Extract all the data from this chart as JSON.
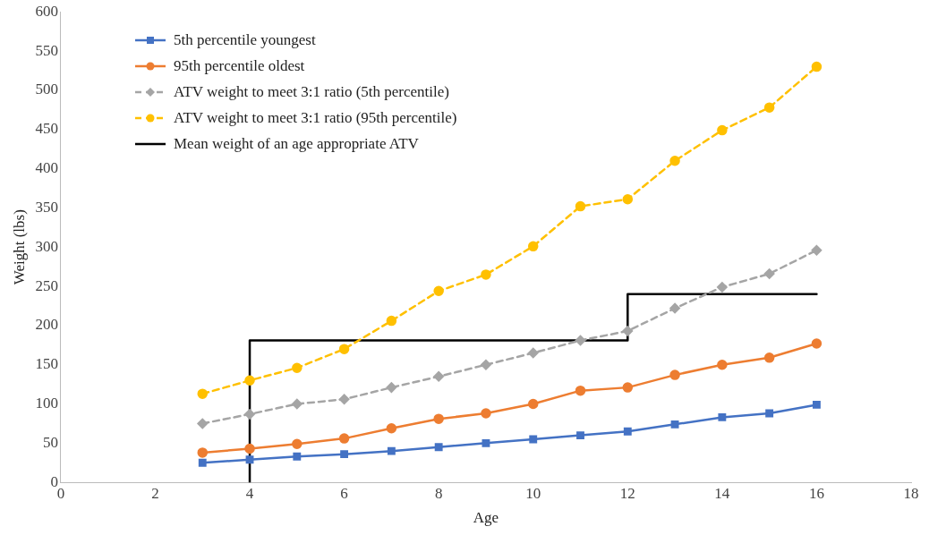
{
  "chart_data": {
    "type": "line",
    "xlabel": "Age",
    "ylabel": "Weight (lbs)",
    "x": [
      3,
      4,
      5,
      6,
      7,
      8,
      9,
      10,
      11,
      12,
      13,
      14,
      15,
      16
    ],
    "xlim": [
      0,
      18
    ],
    "xticks": [
      0,
      2,
      4,
      6,
      8,
      10,
      12,
      14,
      16,
      18
    ],
    "ylim": [
      0,
      600
    ],
    "yticks": [
      0,
      50,
      100,
      150,
      200,
      250,
      300,
      350,
      400,
      450,
      500,
      550,
      600
    ],
    "grid": false,
    "legend": "top left",
    "series": [
      {
        "name": "5th percentile youngest",
        "color": "#4472c4",
        "marker": "square",
        "line_style": "solid",
        "values": [
          25,
          29,
          33,
          36,
          40,
          45,
          50,
          55,
          60,
          65,
          74,
          83,
          88,
          99
        ]
      },
      {
        "name": "95th percentile oldest",
        "color": "#ed7d31",
        "marker": "circle",
        "line_style": "solid",
        "values": [
          38,
          43,
          49,
          56,
          69,
          81,
          88,
          100,
          117,
          121,
          137,
          150,
          159,
          177
        ]
      },
      {
        "name": "ATV weight to meet 3:1 ratio (5th percentile)",
        "color": "#a5a5a5",
        "marker": "diamond",
        "line_style": "dashed",
        "values": [
          75,
          87,
          100,
          106,
          121,
          135,
          150,
          165,
          181,
          193,
          222,
          249,
          266,
          296
        ]
      },
      {
        "name": "ATV weight to meet 3:1 ratio (95th percentile)",
        "color": "#ffc000",
        "marker": "circle",
        "line_style": "dashed",
        "values": [
          113,
          130,
          146,
          170,
          206,
          244,
          265,
          301,
          352,
          361,
          410,
          449,
          478,
          530
        ]
      },
      {
        "name": "Mean weight of an age appropriate ATV",
        "color": "#000000",
        "marker": "none",
        "line_style": "solid",
        "x": [
          4,
          4,
          12,
          12,
          16
        ],
        "values": [
          0,
          181,
          181,
          240,
          240
        ]
      }
    ]
  }
}
